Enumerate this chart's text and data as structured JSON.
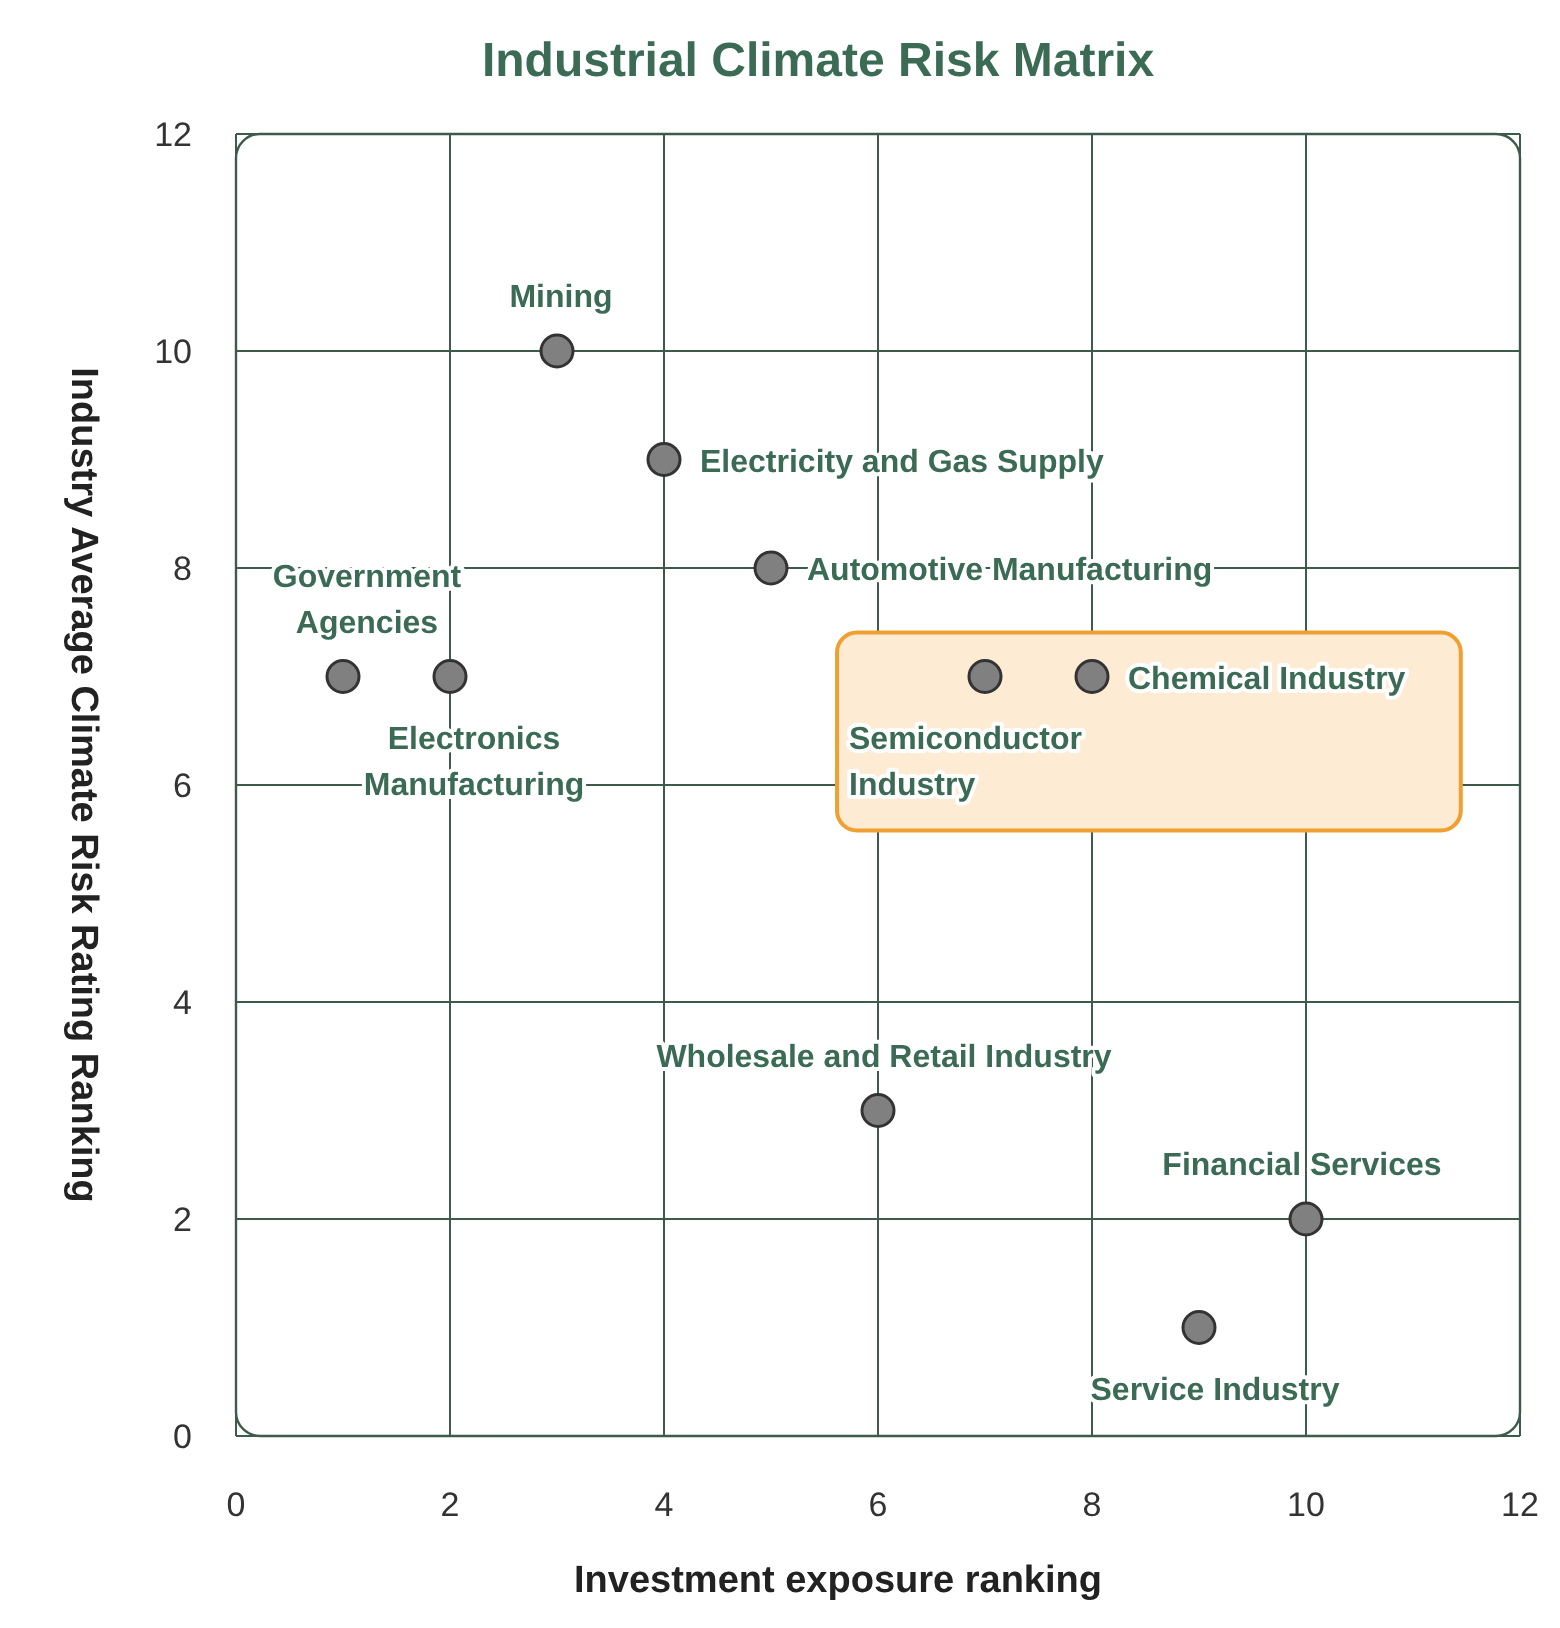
{
  "chart_data": {
    "type": "scatter",
    "title": "Industrial Climate Risk Matrix",
    "xlabel": "Investment exposure ranking",
    "ylabel": "Industry Average Climate Risk Rating Ranking",
    "series": [
      {
        "color": "#808080",
        "x": [
          3,
          4,
          5,
          1,
          2,
          7,
          8,
          6,
          10,
          9
        ],
        "values": [
          10,
          9,
          8,
          7,
          7,
          7,
          7,
          3,
          2,
          1
        ]
      }
    ],
    "annotations": [
      {
        "text": "Mining",
        "x": 3,
        "y": 10
      },
      {
        "text": "Electricity and Gas Supply",
        "x": 4,
        "y": 9
      },
      {
        "text": "Automotive Manufacturing",
        "x": 5,
        "y": 8
      },
      {
        "text": "Government Agencies",
        "x": 1,
        "y": 7
      },
      {
        "text": "Electronics Manufacturing",
        "x": 2,
        "y": 7
      },
      {
        "text": "Semiconductor Industry",
        "x": 7,
        "y": 7
      },
      {
        "text": "Chemical Industry",
        "x": 8,
        "y": 7
      },
      {
        "text": "Wholesale and Retail Industry",
        "x": 6,
        "y": 3
      },
      {
        "text": "Financial Services",
        "x": 10,
        "y": 2
      },
      {
        "text": "Service Industry",
        "x": 9,
        "y": 1
      }
    ],
    "xlim": [
      0,
      12
    ],
    "xticks": [
      0,
      2,
      4,
      6,
      8,
      10,
      12
    ],
    "ylim": [
      0,
      12
    ],
    "yticks": [
      0,
      2,
      4,
      6,
      8,
      10,
      12
    ],
    "grid": true,
    "marker": "circle"
  }
}
